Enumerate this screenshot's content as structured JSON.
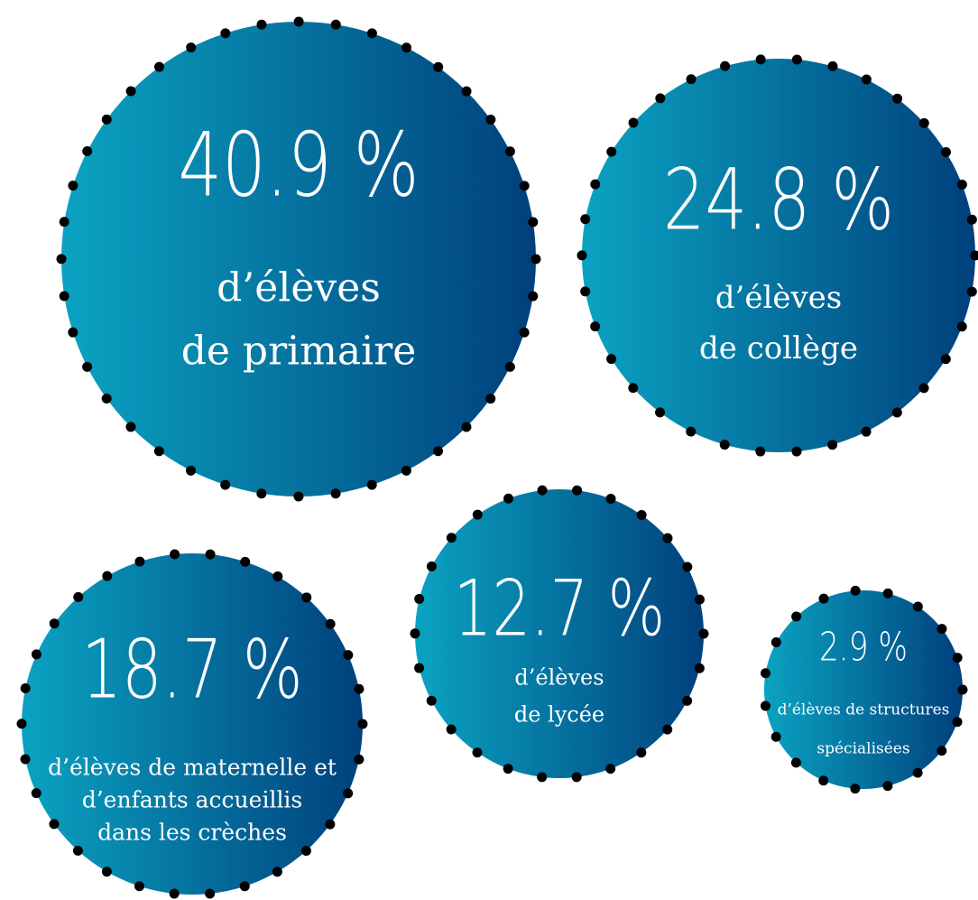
{
  "bubbles": [
    {
      "value": "40.9 %",
      "lines": [
        "d’élèves",
        "de primaire"
      ]
    },
    {
      "value": "24.8 %",
      "lines": [
        "d’élèves",
        "de collège"
      ]
    },
    {
      "value": "18.7 %",
      "lines": [
        "d’élèves de maternelle et",
        "d’enfants accueillis",
        "dans les crèches"
      ]
    },
    {
      "value": "12.7 %",
      "lines": [
        "d’élèves",
        "de lycée"
      ]
    },
    {
      "value": "2.9 %",
      "lines": [
        "d’élèves de structures",
        "spécialisées"
      ]
    }
  ]
}
